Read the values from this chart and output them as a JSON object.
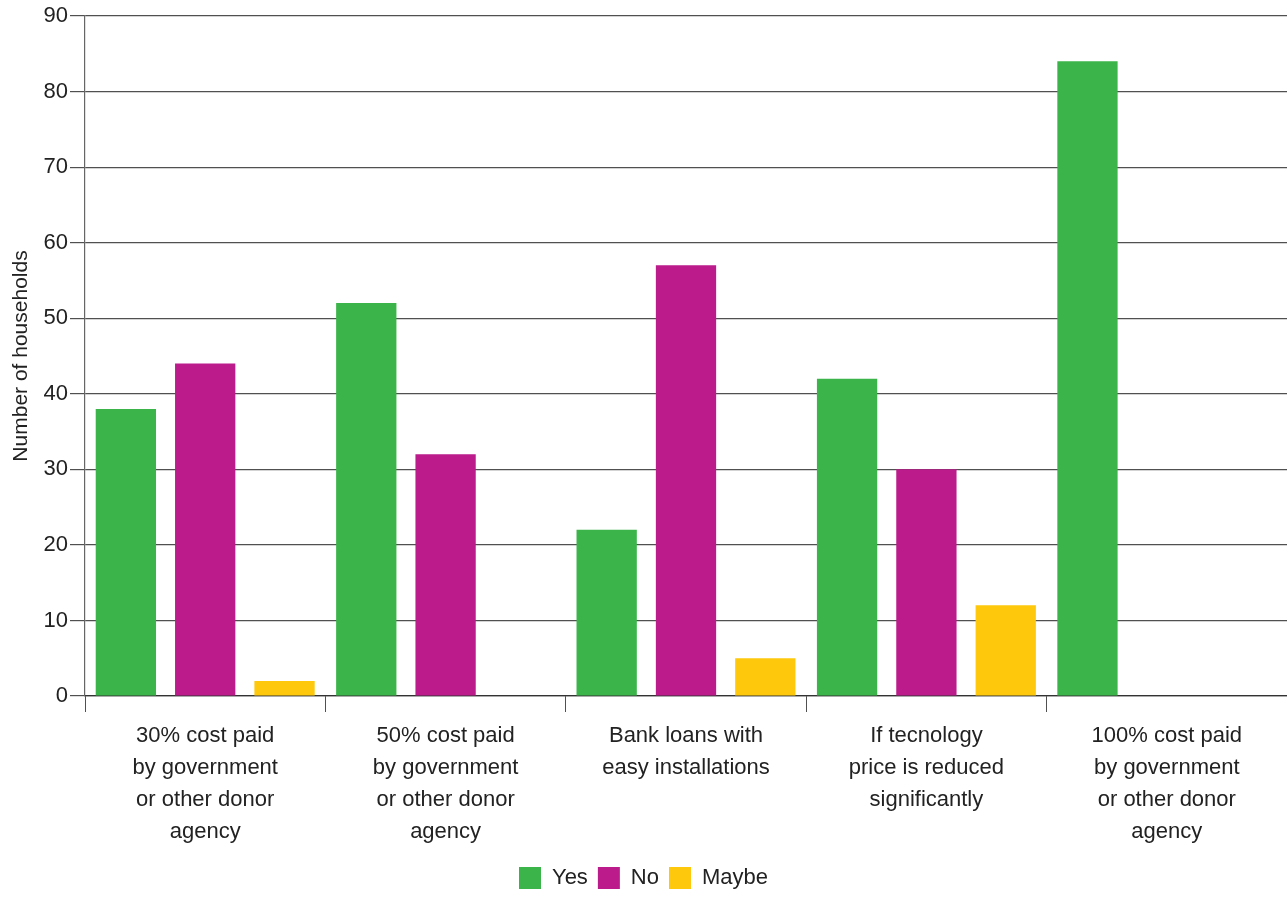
{
  "chart_data": {
    "type": "bar",
    "categories": [
      "30% cost paid\nby government\nor other donor\nagency",
      "50% cost paid\nby government\nor other donor\nagency",
      "Bank loans with\neasy installations",
      "If tecnology\nprice is reduced\nsignificantly",
      "100% cost paid\nby government\nor other donor\nagency"
    ],
    "series": [
      {
        "name": "Yes",
        "color": "#3bb54a",
        "values": [
          38,
          52,
          22,
          42,
          84
        ]
      },
      {
        "name": "No",
        "color": "#bb1b8b",
        "values": [
          44,
          32,
          57,
          30,
          null
        ]
      },
      {
        "name": "Maybe",
        "color": "#fec90c",
        "values": [
          2,
          null,
          5,
          12,
          null
        ]
      }
    ],
    "ylabel": "Number of households",
    "ylim": [
      0,
      90
    ],
    "yticks": [
      0,
      10,
      20,
      30,
      40,
      50,
      60,
      70,
      80,
      90
    ],
    "grid": "y",
    "legend": "bottom"
  }
}
